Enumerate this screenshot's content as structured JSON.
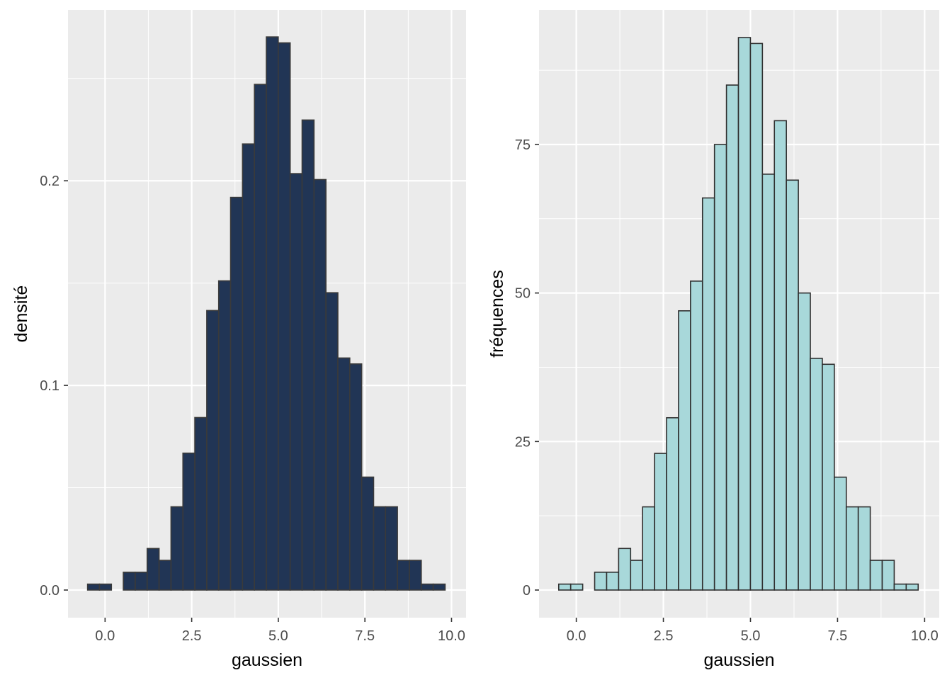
{
  "colors": {
    "panel_bg": "#EBEBEB",
    "grid": "#FFFFFF",
    "tick_mark": "#333333",
    "left_fill": "#213555",
    "left_outline": "#3A3A3A",
    "right_fill": "#A8D8DA",
    "right_outline": "#2F2F2F"
  },
  "chart_data": [
    {
      "type": "bar",
      "subtype": "histogram",
      "title": "",
      "xlabel": "gaussien",
      "ylabel": "densité",
      "xlim": [
        -1.07,
        10.42
      ],
      "ylim": [
        -0.0135,
        0.2835
      ],
      "xticks": [
        0.0,
        2.5,
        5.0,
        7.5,
        10.0
      ],
      "xtick_labels": [
        "0.0",
        "2.5",
        "5.0",
        "7.5",
        "10.0"
      ],
      "yticks": [
        0.0,
        0.1,
        0.2
      ],
      "ytick_labels": [
        "0.0",
        "0.1",
        "0.2"
      ],
      "grid": true,
      "bin_width": 0.344,
      "bin_centers": [
        -0.333,
        0.011,
        0.355,
        0.699,
        1.043,
        1.387,
        1.731,
        2.075,
        2.419,
        2.763,
        3.107,
        3.451,
        3.795,
        4.139,
        4.483,
        4.827,
        5.171,
        5.515,
        5.859,
        6.203,
        6.547,
        6.891,
        7.235,
        7.579,
        7.923,
        8.267,
        8.611,
        8.955,
        9.299,
        9.643
      ],
      "values": [
        0.0029,
        0.0029,
        0.0,
        0.0087,
        0.0087,
        0.0203,
        0.0145,
        0.0407,
        0.0669,
        0.0843,
        0.1366,
        0.1511,
        0.1919,
        0.218,
        0.2471,
        0.2703,
        0.2674,
        0.2035,
        0.2297,
        0.2006,
        0.1453,
        0.1134,
        0.1105,
        0.0552,
        0.0407,
        0.0407,
        0.0145,
        0.0145,
        0.0029,
        0.0029
      ]
    },
    {
      "type": "bar",
      "subtype": "histogram",
      "title": "",
      "xlabel": "gaussien",
      "ylabel": "fréquences",
      "xlim": [
        -1.07,
        10.42
      ],
      "ylim": [
        -4.65,
        97.65
      ],
      "xticks": [
        0.0,
        2.5,
        5.0,
        7.5,
        10.0
      ],
      "xtick_labels": [
        "0.0",
        "2.5",
        "5.0",
        "7.5",
        "10.0"
      ],
      "yticks": [
        0,
        25,
        50,
        75
      ],
      "ytick_labels": [
        "0",
        "25",
        "50",
        "75"
      ],
      "grid": true,
      "bin_width": 0.344,
      "bin_centers": [
        -0.333,
        0.011,
        0.355,
        0.699,
        1.043,
        1.387,
        1.731,
        2.075,
        2.419,
        2.763,
        3.107,
        3.451,
        3.795,
        4.139,
        4.483,
        4.827,
        5.171,
        5.515,
        5.859,
        6.203,
        6.547,
        6.891,
        7.235,
        7.579,
        7.923,
        8.267,
        8.611,
        8.955,
        9.299,
        9.643
      ],
      "values": [
        1,
        1,
        0,
        3,
        3,
        7,
        5,
        14,
        23,
        29,
        47,
        52,
        66,
        75,
        85,
        93,
        92,
        70,
        79,
        69,
        50,
        39,
        38,
        19,
        14,
        14,
        5,
        5,
        1,
        1
      ]
    }
  ]
}
